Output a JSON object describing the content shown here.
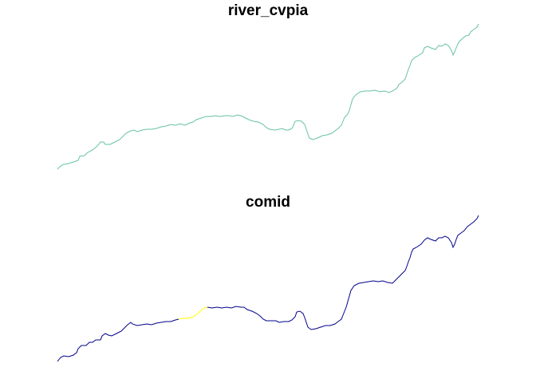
{
  "panels": [
    {
      "title": "river_cvpia",
      "segments": [
        {
          "color": "#66c2a5"
        }
      ]
    },
    {
      "title": "comid",
      "segments": [
        {
          "color": "#00008b"
        },
        {
          "color": "#ffff00"
        },
        {
          "color": "#00008b"
        }
      ]
    }
  ]
}
